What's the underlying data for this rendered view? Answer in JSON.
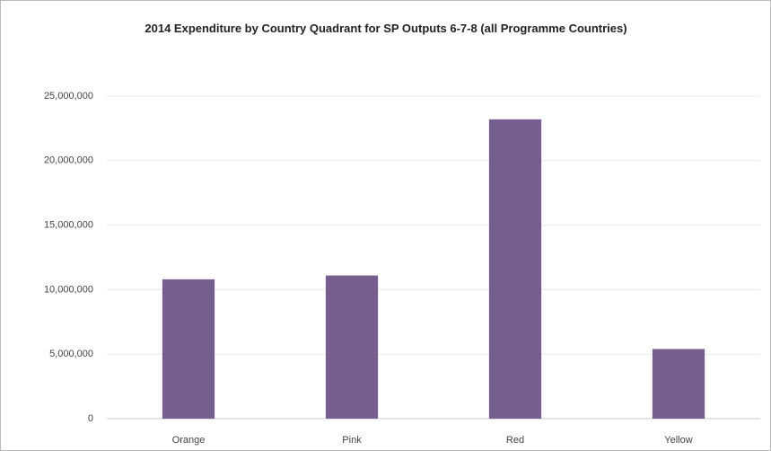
{
  "chart_data": {
    "type": "bar",
    "title": "2014 Expenditure by Country Quadrant for SP Outputs 6-7-8 (all Programme Countries)",
    "categories": [
      "Orange",
      "Pink",
      "Red",
      "Yellow"
    ],
    "values": [
      10800000,
      11100000,
      23200000,
      5400000
    ],
    "color": "#765f8e",
    "ylim": [
      0,
      25000000
    ],
    "yticks": [
      0,
      {
        "value": 5000000,
        "label": "5,000,000"
      },
      {
        "value": 10000000,
        "label": "10,000,000"
      },
      {
        "value": 15000000,
        "label": "15,000,000"
      },
      {
        "value": 20000000,
        "label": "20,000,000"
      },
      {
        "value": 25000000,
        "label": "25,000,000"
      }
    ],
    "grid": true
  }
}
